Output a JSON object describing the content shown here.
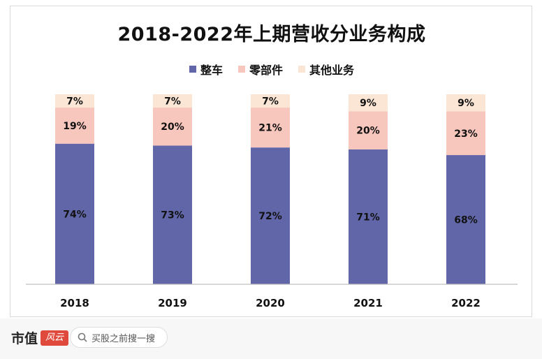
{
  "colors": {
    "series1": "#6166a8",
    "series2": "#f7c6bc",
    "series3": "#fbe6d6",
    "axis": "#bfbfbf",
    "text": "#111111"
  },
  "chart_data": {
    "type": "bar",
    "stacked": true,
    "percent": true,
    "title": "2018-2022年上期营收分业务构成",
    "categories": [
      "2018",
      "2019",
      "2020",
      "2021",
      "2022"
    ],
    "series": [
      {
        "name": "整车",
        "values": [
          74,
          73,
          72,
          71,
          68
        ],
        "labels": [
          "74%",
          "73%",
          "72%",
          "71%",
          "68%"
        ]
      },
      {
        "name": "零部件",
        "values": [
          19,
          20,
          21,
          20,
          23
        ],
        "labels": [
          "19%",
          "20%",
          "21%",
          "20%",
          "23%"
        ]
      },
      {
        "name": "其他业务",
        "values": [
          7,
          7,
          7,
          9,
          9
        ],
        "labels": [
          "7%",
          "7%",
          "7%",
          "9%",
          "9%"
        ]
      }
    ],
    "ylim": [
      0,
      100
    ],
    "legend_position": "top",
    "grid": false
  },
  "footer": {
    "brand": "市值",
    "logo_text": "风云",
    "search_placeholder": "买股之前搜一搜"
  }
}
